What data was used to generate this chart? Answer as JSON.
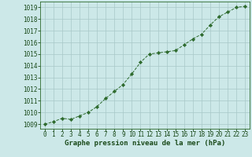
{
  "x": [
    0,
    1,
    2,
    3,
    4,
    5,
    6,
    7,
    8,
    9,
    10,
    11,
    12,
    13,
    14,
    15,
    16,
    17,
    18,
    19,
    20,
    21,
    22,
    23
  ],
  "y": [
    1009.0,
    1009.2,
    1009.5,
    1009.4,
    1009.7,
    1010.0,
    1010.5,
    1011.2,
    1011.8,
    1012.4,
    1013.3,
    1014.3,
    1015.0,
    1015.1,
    1015.2,
    1015.3,
    1015.8,
    1016.3,
    1016.7,
    1017.5,
    1018.2,
    1018.6,
    1019.0,
    1019.1
  ],
  "line_color": "#2d6a2d",
  "marker": "D",
  "marker_size": 2.2,
  "bg_color": "#cce8e8",
  "grid_color": "#a8c8c8",
  "xlabel": "Graphe pression niveau de la mer (hPa)",
  "xlabel_color": "#1a4a1a",
  "ytick_labels": [
    1009,
    1010,
    1011,
    1012,
    1013,
    1014,
    1015,
    1016,
    1017,
    1018,
    1019
  ],
  "ylim": [
    1008.6,
    1019.5
  ],
  "xlim": [
    -0.5,
    23.5
  ],
  "xtick_labels": [
    "0",
    "1",
    "2",
    "3",
    "4",
    "5",
    "6",
    "7",
    "8",
    "9",
    "10",
    "11",
    "12",
    "13",
    "14",
    "15",
    "16",
    "17",
    "18",
    "19",
    "20",
    "21",
    "22",
    "23"
  ],
  "tick_color": "#1a4a1a",
  "tick_fontsize": 5.5,
  "xlabel_fontsize": 6.5,
  "spine_color": "#2d6a2d",
  "linewidth": 0.7
}
